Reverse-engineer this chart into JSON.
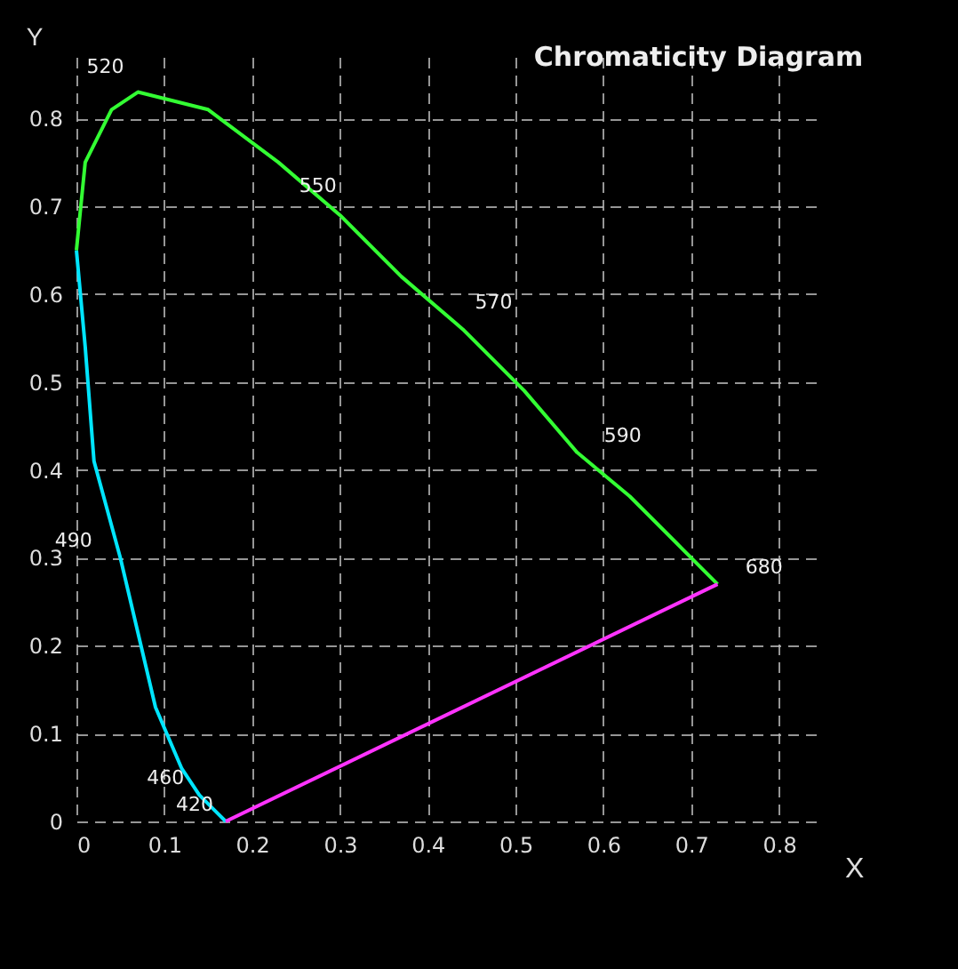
{
  "chart_data": {
    "type": "line",
    "title": "Chromaticity Diagram",
    "xlabel": "X",
    "ylabel": "Y",
    "series": [
      {
        "color": "#00e5ff",
        "x": [
          0.17,
          0.16,
          0.14,
          0.12,
          0.09,
          0.05,
          0.02,
          0.01,
          0.0
        ],
        "values": [
          0.0,
          0.01,
          0.03,
          0.06,
          0.13,
          0.3,
          0.41,
          0.54,
          0.65
        ]
      },
      {
        "color": "#33ff33",
        "x": [
          0.0,
          0.01,
          0.04,
          0.07,
          0.15,
          0.23,
          0.3,
          0.37,
          0.44,
          0.51,
          0.57,
          0.63,
          0.69,
          0.73
        ],
        "values": [
          0.65,
          0.75,
          0.81,
          0.83,
          0.81,
          0.75,
          0.69,
          0.62,
          0.56,
          0.49,
          0.42,
          0.37,
          0.31,
          0.27
        ]
      },
      {
        "color": "#ff33ff",
        "x": [
          0.73,
          0.17
        ],
        "values": [
          0.27,
          0.0
        ]
      }
    ],
    "xlim": [
      0,
      0.85
    ],
    "ylim": [
      0,
      0.87
    ],
    "xticks": [
      0,
      0.1,
      0.2,
      0.3,
      0.4,
      0.5,
      0.6,
      0.7,
      0.8
    ],
    "yticks": [
      0,
      0.1,
      0.2,
      0.3,
      0.4,
      0.5,
      0.6,
      0.7,
      0.8
    ],
    "grid": true,
    "line_style": "solid",
    "marker": "none",
    "annotations": [
      {
        "text": "420",
        "x": 0.17,
        "y": 0.0
      },
      {
        "text": "460",
        "x": 0.14,
        "y": 0.03
      },
      {
        "text": "490",
        "x": 0.05,
        "y": 0.3
      },
      {
        "text": "520",
        "x": 0.07,
        "y": 0.83
      },
      {
        "text": "550",
        "x": 0.3,
        "y": 0.69
      },
      {
        "text": "570",
        "x": 0.44,
        "y": 0.56
      },
      {
        "text": "590",
        "x": 0.57,
        "y": 0.42
      },
      {
        "text": "680",
        "x": 0.73,
        "y": 0.27
      }
    ]
  }
}
